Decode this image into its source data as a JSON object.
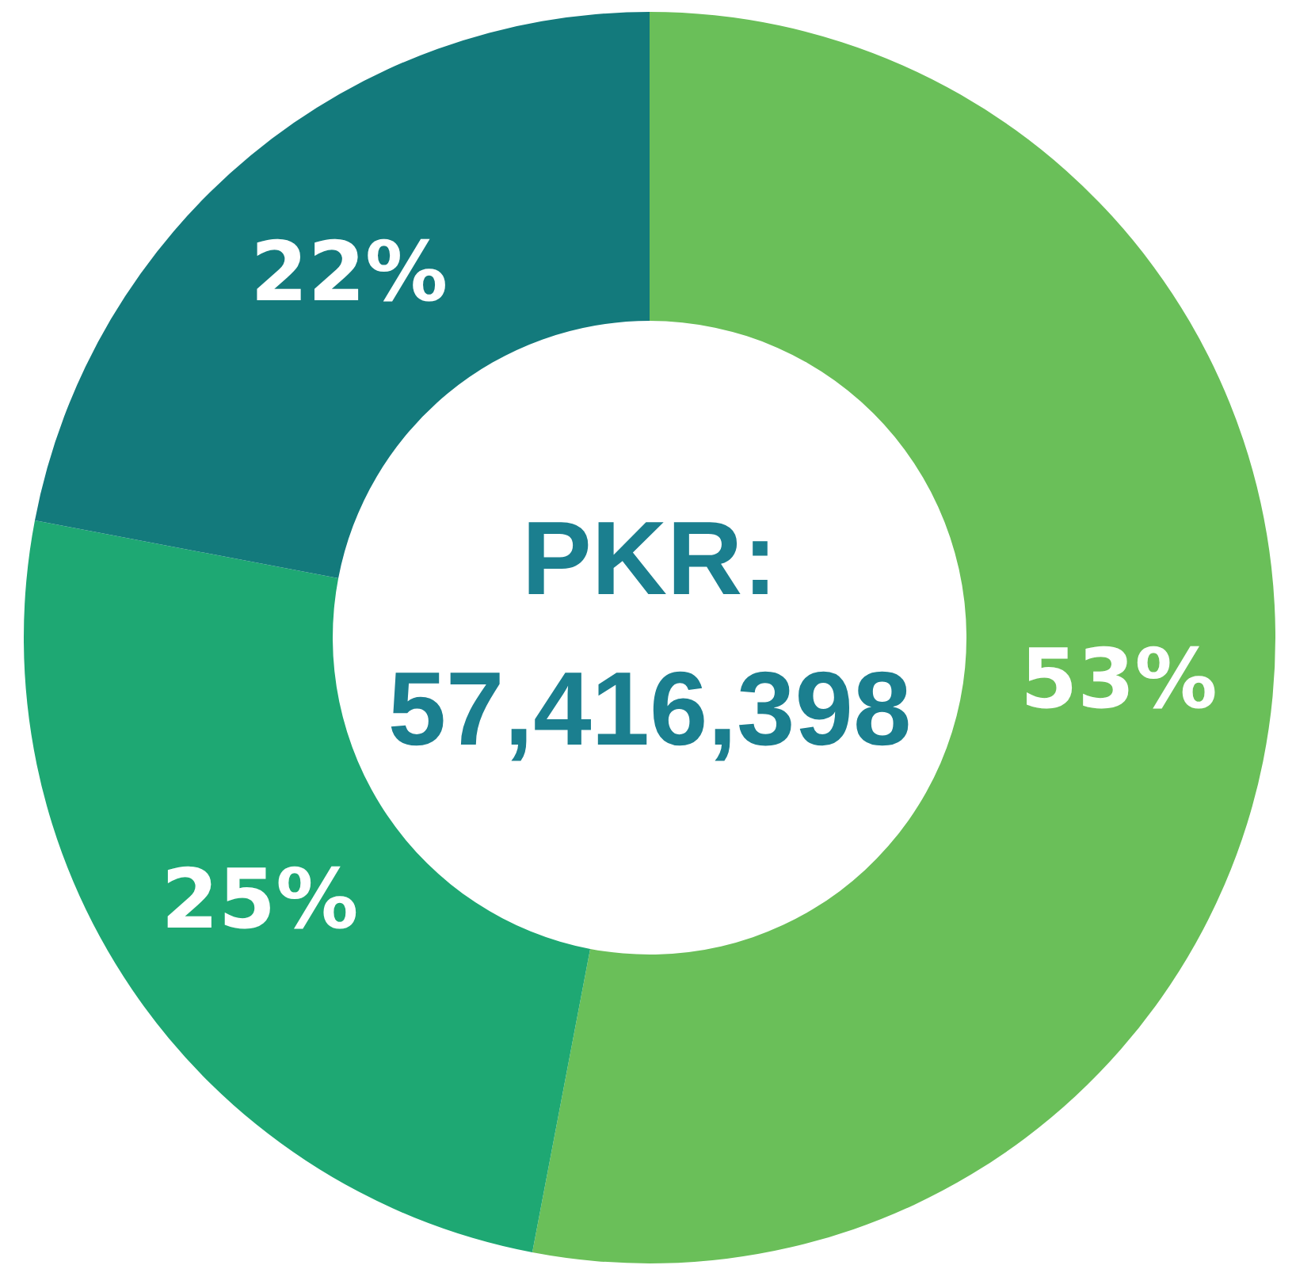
{
  "chart_data": {
    "type": "donut",
    "categories": [
      null,
      null,
      null
    ],
    "values": [
      53,
      25,
      22
    ],
    "colors": [
      "#6abf59",
      "#1ea873",
      "#137a7c"
    ],
    "value_labels": [
      "53%",
      "25%",
      "22%"
    ],
    "annotations": [
      "PKR:",
      "57,416,398"
    ]
  }
}
